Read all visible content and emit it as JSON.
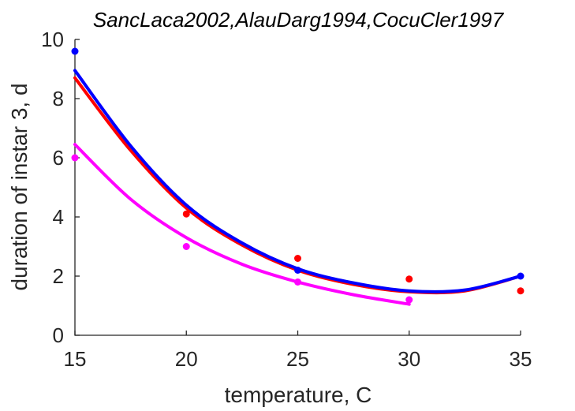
{
  "chart_data": {
    "type": "scatter",
    "title": "SancLaca2002,AlauDarg1994,CocuCler1997",
    "xlabel": "temperature, C",
    "ylabel": "duration of instar 3, d",
    "xlim": [
      15,
      35
    ],
    "ylim": [
      0,
      10
    ],
    "xticks": [
      "15",
      "20",
      "25",
      "30",
      "35"
    ],
    "yticks": [
      "0",
      "2",
      "4",
      "6",
      "8",
      "10"
    ],
    "grid": false,
    "legend": "none",
    "series": [
      {
        "color": "#ff0000",
        "points": [
          [
            20,
            4.1
          ],
          [
            25,
            2.6
          ],
          [
            30,
            1.9
          ],
          [
            35,
            1.5
          ]
        ],
        "fit": [
          [
            15,
            8.7
          ],
          [
            17.5,
            6.25
          ],
          [
            20,
            4.3
          ],
          [
            22.5,
            3.05
          ],
          [
            25,
            2.2
          ],
          [
            27.5,
            1.72
          ],
          [
            30,
            1.47
          ],
          [
            32.5,
            1.5
          ],
          [
            35,
            2.0
          ]
        ]
      },
      {
        "color": "#0000ff",
        "points": [
          [
            15,
            9.6
          ],
          [
            25,
            2.2
          ],
          [
            35,
            2.0
          ]
        ],
        "fit": [
          [
            15,
            8.95
          ],
          [
            17.5,
            6.4
          ],
          [
            20,
            4.4
          ],
          [
            22.5,
            3.12
          ],
          [
            25,
            2.25
          ],
          [
            27.5,
            1.77
          ],
          [
            30,
            1.5
          ],
          [
            32.5,
            1.53
          ],
          [
            35,
            2.0
          ]
        ]
      },
      {
        "color": "#ff00ff",
        "points": [
          [
            15,
            6.0
          ],
          [
            20,
            3.0
          ],
          [
            25,
            1.8
          ],
          [
            30,
            1.2
          ]
        ],
        "fit": [
          [
            15,
            6.45
          ],
          [
            17.5,
            4.6
          ],
          [
            20,
            3.3
          ],
          [
            22.5,
            2.4
          ],
          [
            25,
            1.8
          ],
          [
            27.5,
            1.37
          ],
          [
            30,
            1.05
          ]
        ]
      }
    ]
  }
}
